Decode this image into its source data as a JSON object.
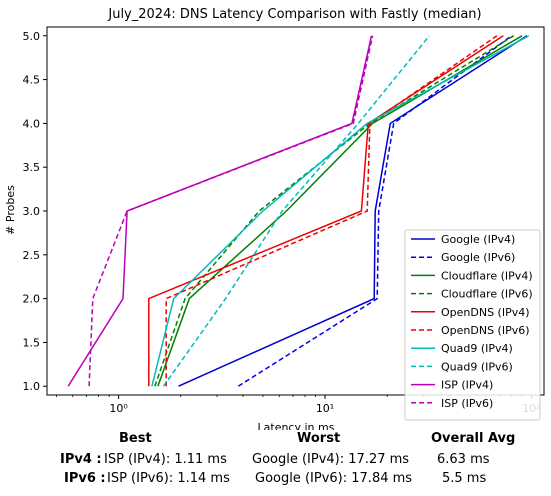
{
  "chart_data": {
    "type": "line",
    "title": "July_2024: DNS Latency Comparison with Fastly (median)",
    "xlabel": "Latency in ms",
    "ylabel": "# Probes",
    "xscale": "log",
    "xlim": [
      0.45,
      115
    ],
    "ylim": [
      0.9,
      5.1
    ],
    "x_ticks": [
      1,
      10,
      100
    ],
    "x_tick_labels": [
      "10⁰",
      "10¹",
      "10²"
    ],
    "y_ticks": [
      1.0,
      1.5,
      2.0,
      2.5,
      3.0,
      3.5,
      4.0,
      4.5,
      5.0
    ],
    "y_tick_labels": [
      "1.0",
      "1.5",
      "2.0",
      "2.5",
      "3.0",
      "3.5",
      "4.0",
      "4.5",
      "5.0"
    ],
    "grid": false,
    "legend_position": "lower-right",
    "series": [
      {
        "name": "Google (IPv4)",
        "color": "#0000cc",
        "dash": "solid",
        "x": [
          1.95,
          17.3,
          17.5,
          20.7,
          95
        ],
        "y": [
          1,
          2,
          3,
          4,
          5
        ]
      },
      {
        "name": "Google (IPv6)",
        "color": "#0000ee",
        "dash": "dashed",
        "x": [
          3.8,
          17.9,
          18.2,
          21.5,
          80
        ],
        "y": [
          1,
          2,
          3,
          4,
          5
        ]
      },
      {
        "name": "Cloudflare (IPv4)",
        "color": "#008000",
        "dash": "solid",
        "x": [
          1.55,
          2.2,
          6.5,
          17.0,
          90
        ],
        "y": [
          1,
          2,
          3,
          4,
          5
        ]
      },
      {
        "name": "Cloudflare (IPv6)",
        "color": "#008000",
        "dash": "dashed",
        "x": [
          1.5,
          2.1,
          4.8,
          16.5,
          82
        ],
        "y": [
          1,
          2,
          3,
          4,
          5
        ]
      },
      {
        "name": "OpenDNS (IPv4)",
        "color": "#ee0000",
        "dash": "solid",
        "x": [
          1.4,
          1.4,
          15.0,
          16.2,
          73
        ],
        "y": [
          1,
          2,
          3,
          4,
          5
        ]
      },
      {
        "name": "OpenDNS (IPv6)",
        "color": "#ee0000",
        "dash": "dashed",
        "x": [
          1.7,
          1.7,
          16.0,
          16.5,
          68
        ],
        "y": [
          1,
          2,
          3,
          4,
          5
        ]
      },
      {
        "name": "Quad9 (IPv4)",
        "color": "#00bbbb",
        "dash": "solid",
        "x": [
          1.45,
          1.85,
          5.0,
          16.0,
          97
        ],
        "y": [
          1,
          2,
          3,
          4,
          5
        ]
      },
      {
        "name": "Quad9 (IPv6)",
        "color": "#00bbbb",
        "dash": "dashed",
        "x": [
          1.65,
          3.3,
          6.2,
          14.5,
          32
        ],
        "y": [
          1,
          2,
          3,
          4,
          5
        ]
      },
      {
        "name": "ISP (IPv4)",
        "color": "#bb00bb",
        "dash": "solid",
        "x": [
          0.57,
          1.05,
          1.1,
          13.5,
          16.8
        ],
        "y": [
          1,
          2,
          3,
          4,
          5
        ]
      },
      {
        "name": "ISP (IPv6)",
        "color": "#bb00bb",
        "dash": "dashed",
        "x": [
          0.72,
          0.75,
          1.1,
          13.7,
          17.0
        ],
        "y": [
          1,
          2,
          3,
          4,
          5
        ]
      }
    ]
  },
  "summary": {
    "headers": {
      "best": "Best",
      "worst": "Worst",
      "avg": "Overall Avg"
    },
    "rows": [
      {
        "label": "IPv4 :",
        "best": "ISP (IPv4): 1.11 ms",
        "worst": "Google (IPv4): 17.27 ms",
        "avg": "6.63 ms"
      },
      {
        "label": "IPv6 :",
        "best": "ISP (IPv6): 1.14 ms",
        "worst": "Google (IPv6): 17.84 ms",
        "avg": "5.5 ms"
      }
    ]
  }
}
